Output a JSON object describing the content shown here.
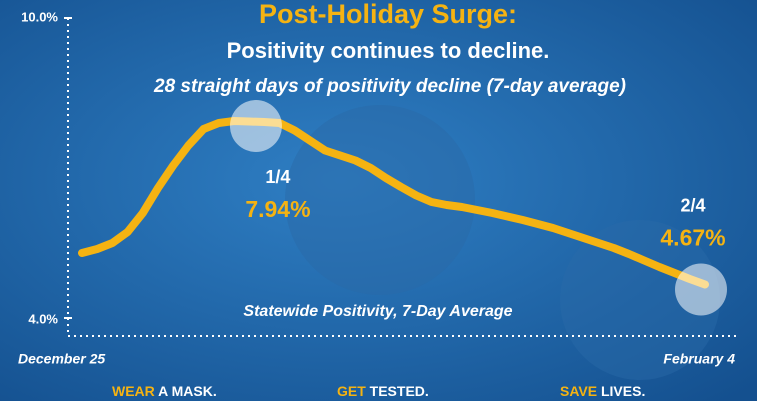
{
  "chart_data": {
    "type": "line",
    "title": "Post-Holiday Surge:",
    "subtitle": "Positivity continues to decline.",
    "caption": "28 straight days of positivity decline (7-day average)",
    "series_label": "Statewide Positivity, 7-Day Average",
    "color": "#f5b312",
    "categories": [
      "December 25",
      null,
      null,
      null,
      null,
      null,
      null,
      null,
      null,
      null,
      null,
      null,
      null,
      null,
      null,
      null,
      null,
      null,
      null,
      null,
      null,
      null,
      null,
      null,
      null,
      null,
      null,
      null,
      null,
      null,
      null,
      null,
      null,
      null,
      null,
      null,
      null,
      null,
      null,
      null,
      null,
      "February 4"
    ],
    "values": [
      5.3,
      5.38,
      5.5,
      5.72,
      6.1,
      6.6,
      7.05,
      7.45,
      7.78,
      7.9,
      7.94,
      7.93,
      7.92,
      7.9,
      7.75,
      7.55,
      7.35,
      7.25,
      7.15,
      7.0,
      6.8,
      6.62,
      6.45,
      6.32,
      6.26,
      6.22,
      6.16,
      6.1,
      6.03,
      5.96,
      5.88,
      5.8,
      5.7,
      5.6,
      5.5,
      5.4,
      5.28,
      5.15,
      5.02,
      4.9,
      4.78,
      4.67
    ],
    "point_labels": [
      null,
      null,
      null,
      null,
      null,
      null,
      null,
      null,
      null,
      null,
      "1/4",
      null,
      null,
      null,
      null,
      null,
      null,
      null,
      null,
      null,
      null,
      null,
      null,
      null,
      null,
      null,
      null,
      null,
      null,
      null,
      null,
      null,
      null,
      null,
      null,
      null,
      null,
      null,
      null,
      null,
      null,
      "2/4"
    ],
    "value_labels": [
      null,
      null,
      null,
      null,
      null,
      null,
      null,
      null,
      null,
      null,
      "7.94%",
      null,
      null,
      null,
      null,
      null,
      null,
      null,
      null,
      null,
      null,
      null,
      null,
      null,
      null,
      null,
      null,
      null,
      null,
      null,
      null,
      null,
      null,
      null,
      null,
      null,
      null,
      null,
      null,
      null,
      null,
      "4.67%"
    ],
    "ylim": [
      4,
      10
    ],
    "yticks": [
      {
        "value": 10,
        "label": "10.0%"
      },
      {
        "value": 4,
        "label": "4.0%"
      }
    ]
  },
  "footer": [
    {
      "highlight": "WEAR",
      "rest": "A MASK."
    },
    {
      "highlight": "GET",
      "rest": "TESTED."
    },
    {
      "highlight": "SAVE",
      "rest": "LIVES."
    }
  ]
}
